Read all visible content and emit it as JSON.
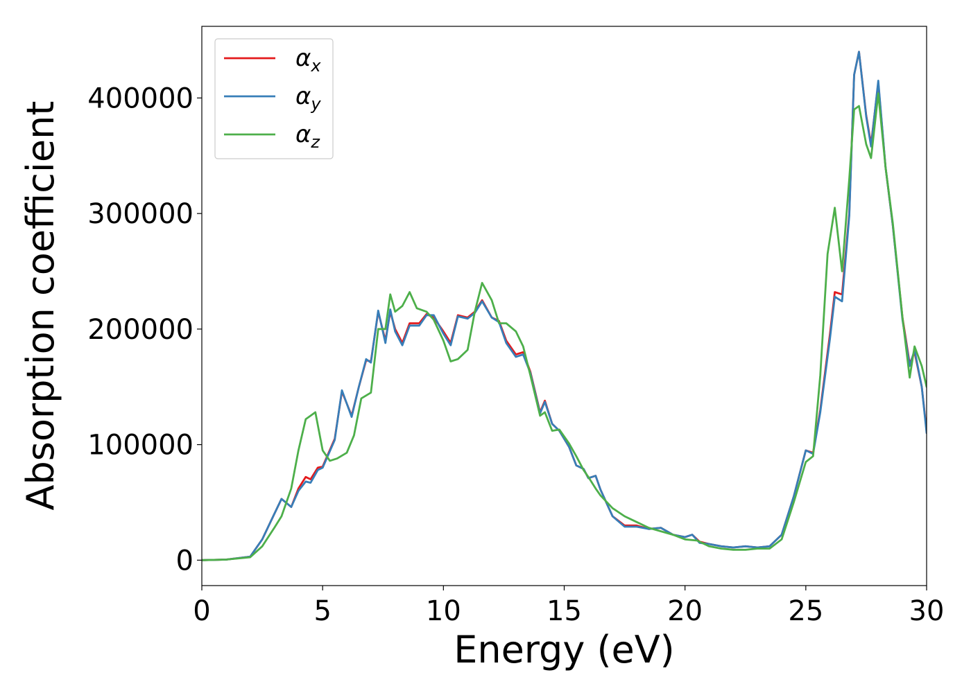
{
  "chart_data": {
    "type": "line",
    "xlabel": "Energy (eV)",
    "ylabel": "Absorption coefficient",
    "xlim": [
      0,
      30
    ],
    "ylim": [
      -22000,
      462000
    ],
    "xticks": [
      "0",
      "5",
      "10",
      "15",
      "20",
      "25",
      "30"
    ],
    "xtick_values": [
      0,
      5,
      10,
      15,
      20,
      25,
      30
    ],
    "yticks": [
      "0",
      "100000",
      "200000",
      "300000",
      "400000"
    ],
    "ytick_values": [
      0,
      100000,
      200000,
      300000,
      400000
    ],
    "grid": false,
    "legend_position": "top-left",
    "series": [
      {
        "name": "α_x",
        "name_base": "α",
        "name_sub": "x",
        "color": "#e41a1c",
        "x": [
          0,
          1,
          2,
          2.5,
          3,
          3.3,
          3.7,
          4.0,
          4.3,
          4.5,
          4.8,
          5.0,
          5.5,
          5.8,
          6.2,
          6.5,
          6.8,
          7.0,
          7.3,
          7.6,
          7.8,
          8.0,
          8.3,
          8.6,
          9.0,
          9.3,
          9.6,
          10.0,
          10.3,
          10.6,
          11.0,
          11.3,
          11.6,
          12.0,
          12.3,
          12.6,
          13.0,
          13.3,
          13.6,
          14.0,
          14.2,
          14.5,
          14.8,
          15.2,
          15.5,
          15.8,
          16.0,
          16.3,
          16.5,
          17.0,
          17.5,
          18.0,
          18.5,
          19.0,
          19.5,
          20.0,
          20.3,
          20.6,
          21.0,
          21.5,
          22.0,
          22.5,
          23.0,
          23.5,
          24.0,
          24.5,
          25.0,
          25.3,
          25.6,
          26.0,
          26.2,
          26.5,
          26.8,
          27.0,
          27.2,
          27.5,
          27.7,
          28.0,
          28.3,
          28.6,
          29.0,
          29.3,
          29.5,
          29.8,
          30.0
        ],
        "y": [
          0,
          500,
          3000,
          18000,
          40000,
          53000,
          46000,
          62000,
          72000,
          70000,
          80000,
          81000,
          105000,
          146000,
          125000,
          150000,
          173000,
          172000,
          215000,
          190000,
          215000,
          200000,
          188000,
          205000,
          205000,
          213000,
          210000,
          198000,
          188000,
          212000,
          210000,
          215000,
          225000,
          210000,
          207000,
          190000,
          178000,
          180000,
          163000,
          128000,
          138000,
          118000,
          112000,
          98000,
          82000,
          79000,
          71000,
          73000,
          61000,
          38000,
          30000,
          30000,
          27000,
          28000,
          22000,
          20000,
          22000,
          16000,
          14000,
          12000,
          11000,
          12000,
          11000,
          12000,
          22000,
          55000,
          95000,
          93000,
          130000,
          196000,
          232000,
          230000,
          300000,
          420000,
          440000,
          385000,
          360000,
          413000,
          340000,
          290000,
          210000,
          170000,
          180000,
          150000,
          112000
        ]
      },
      {
        "name": "α_y",
        "name_base": "α",
        "name_sub": "y",
        "color": "#377eb8",
        "x": [
          0,
          1,
          2,
          2.5,
          3,
          3.3,
          3.7,
          4.0,
          4.3,
          4.5,
          4.8,
          5.0,
          5.5,
          5.8,
          6.2,
          6.5,
          6.8,
          7.0,
          7.3,
          7.6,
          7.8,
          8.0,
          8.3,
          8.6,
          9.0,
          9.3,
          9.6,
          10.0,
          10.3,
          10.6,
          11.0,
          11.3,
          11.6,
          12.0,
          12.3,
          12.6,
          13.0,
          13.3,
          13.6,
          14.0,
          14.2,
          14.5,
          14.8,
          15.2,
          15.5,
          15.8,
          16.0,
          16.3,
          16.5,
          17.0,
          17.5,
          18.0,
          18.5,
          19.0,
          19.5,
          20.0,
          20.3,
          20.6,
          21.0,
          21.5,
          22.0,
          22.5,
          23.0,
          23.5,
          24.0,
          24.5,
          25.0,
          25.3,
          25.6,
          26.0,
          26.2,
          26.5,
          26.8,
          27.0,
          27.2,
          27.5,
          27.7,
          28.0,
          28.3,
          28.6,
          29.0,
          29.3,
          29.5,
          29.8,
          30.0
        ],
        "y": [
          0,
          500,
          3000,
          18000,
          40000,
          53000,
          46000,
          60000,
          68000,
          67000,
          78000,
          80000,
          104000,
          147000,
          124000,
          150000,
          174000,
          171000,
          216000,
          188000,
          217000,
          198000,
          186000,
          203000,
          203000,
          212000,
          212000,
          196000,
          186000,
          211000,
          209000,
          214000,
          224000,
          210000,
          206000,
          188000,
          176000,
          178000,
          162000,
          127000,
          137000,
          118000,
          112000,
          98000,
          82000,
          79000,
          71000,
          73000,
          61000,
          38000,
          29000,
          29000,
          27000,
          28000,
          22000,
          20000,
          22000,
          15000,
          14000,
          12000,
          11000,
          12000,
          11000,
          12000,
          22000,
          55000,
          95000,
          92000,
          128000,
          192000,
          228000,
          224000,
          298000,
          420000,
          440000,
          384000,
          358000,
          415000,
          340000,
          290000,
          208000,
          168000,
          182000,
          150000,
          110000
        ]
      },
      {
        "name": "α_z",
        "name_base": "α",
        "name_sub": "z",
        "color": "#4daf4a",
        "x": [
          0,
          1,
          2,
          2.5,
          3,
          3.3,
          3.7,
          4.0,
          4.3,
          4.5,
          4.7,
          5.0,
          5.3,
          5.6,
          6.0,
          6.3,
          6.6,
          7.0,
          7.3,
          7.6,
          7.8,
          8.0,
          8.3,
          8.6,
          8.9,
          9.3,
          9.6,
          10.0,
          10.3,
          10.6,
          11.0,
          11.3,
          11.6,
          12.0,
          12.3,
          12.6,
          13.0,
          13.3,
          13.6,
          14.0,
          14.2,
          14.5,
          14.8,
          15.2,
          15.5,
          15.8,
          16.0,
          16.3,
          16.5,
          17.0,
          17.5,
          18.0,
          18.5,
          19.0,
          19.5,
          20.0,
          20.5,
          21.0,
          21.5,
          22.0,
          22.5,
          23.0,
          23.5,
          24.0,
          24.5,
          25.0,
          25.3,
          25.6,
          25.9,
          26.2,
          26.5,
          26.8,
          27.0,
          27.2,
          27.5,
          27.7,
          28.0,
          28.3,
          28.6,
          29.0,
          29.3,
          29.5,
          29.8,
          30.0
        ],
        "y": [
          0,
          500,
          2500,
          12000,
          28000,
          38000,
          62000,
          95000,
          122000,
          125000,
          128000,
          95000,
          86000,
          88000,
          93000,
          108000,
          140000,
          145000,
          200000,
          200000,
          230000,
          215000,
          220000,
          232000,
          218000,
          215000,
          208000,
          190000,
          172000,
          174000,
          182000,
          215000,
          240000,
          225000,
          205000,
          205000,
          198000,
          185000,
          160000,
          125000,
          128000,
          112000,
          113000,
          101000,
          90000,
          78000,
          72000,
          62000,
          56000,
          45000,
          38000,
          33000,
          28000,
          25000,
          22000,
          18000,
          17000,
          12000,
          10000,
          9000,
          9000,
          10000,
          10000,
          18000,
          50000,
          85000,
          90000,
          160000,
          265000,
          305000,
          250000,
          330000,
          390000,
          393000,
          360000,
          348000,
          404000,
          340000,
          292000,
          210000,
          158000,
          185000,
          168000,
          150000
        ]
      }
    ]
  }
}
